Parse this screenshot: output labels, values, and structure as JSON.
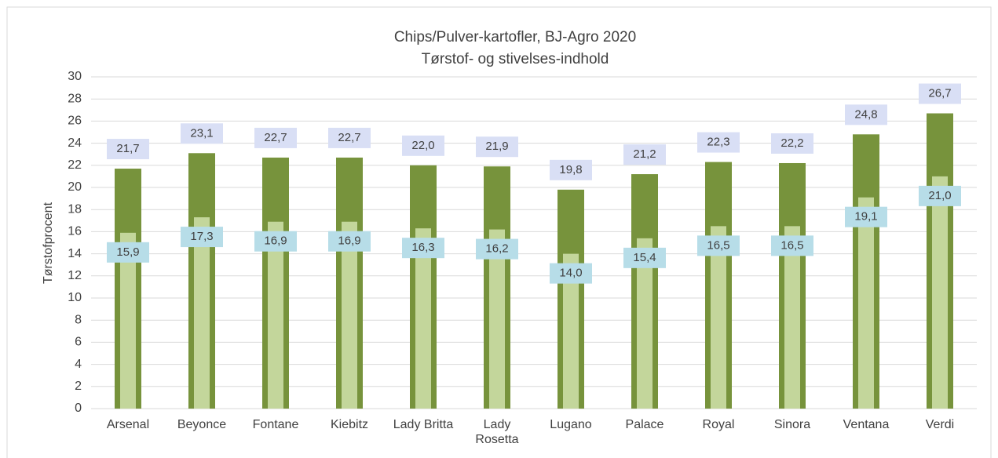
{
  "chart_data": {
    "type": "bar",
    "title": "Chips/Pulver-kartofler, BJ-Agro 2020",
    "subtitle": "Tørstof- og stivelses-indhold",
    "y_label": "Tørstofprocent",
    "categories": [
      "Arsenal",
      "Beyonce",
      "Fontane",
      "Kiebitz",
      "Lady Britta",
      "Lady Rosetta",
      "Lugano",
      "Palace",
      "Royal",
      "Sinora",
      "Ventana",
      "Verdi"
    ],
    "series": [
      {
        "color": "#77933c",
        "values": [
          21.7,
          23.1,
          22.7,
          22.7,
          22.0,
          21.9,
          19.8,
          21.2,
          22.3,
          22.2,
          24.8,
          26.7
        ],
        "value_labels": [
          "21,7",
          "23,1",
          "22,7",
          "22,7",
          "22,0",
          "21,9",
          "19,8",
          "21,2",
          "22,3",
          "22,2",
          "24,8",
          "26,7"
        ]
      },
      {
        "color": "#c3d69b",
        "values": [
          15.9,
          17.3,
          16.9,
          16.9,
          16.3,
          16.2,
          14.0,
          15.4,
          16.5,
          16.5,
          19.1,
          21.0
        ],
        "value_labels": [
          "15,9",
          "17,3",
          "16,9",
          "16,9",
          "16,3",
          "16,2",
          "14,0",
          "15,4",
          "16,5",
          "16,5",
          "19,1",
          "21,0"
        ]
      }
    ],
    "ylim": [
      0,
      30
    ],
    "yticks": [
      0,
      2,
      4,
      6,
      8,
      10,
      12,
      14,
      16,
      18,
      20,
      22,
      24,
      26,
      28,
      30
    ],
    "grid": true
  }
}
